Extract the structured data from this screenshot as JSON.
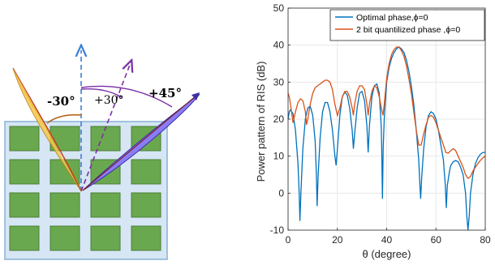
{
  "diagram": {
    "labels": {
      "neg30": "-30°",
      "pos30": "+30°",
      "pos45": "+45°"
    },
    "colors": {
      "panel": "#d6e6f5",
      "panel_border": "#8ab0d4",
      "element": "#6aa84f",
      "element_border": "#4b7e35",
      "beam_yellow": "#f9c74f",
      "beam_yellow_edge": "#b8860b",
      "beam_blue": "#8b7cf6",
      "beam_blue_edge": "#3b2fa8",
      "arrow_normal": "#3d7fd6",
      "arrow_purple": "#7a2fa8",
      "arc_brown": "#b5651d"
    }
  },
  "chart_data": {
    "type": "line",
    "title": "",
    "xlabel": "θ (degree)",
    "ylabel": "Power pattern of RIS (dB)",
    "xlim": [
      0,
      80
    ],
    "ylim": [
      -10,
      50
    ],
    "xticks": [
      0,
      20,
      40,
      60,
      80
    ],
    "yticks": [
      -10,
      0,
      10,
      20,
      30,
      40,
      50
    ],
    "grid": true,
    "legend_position": "top-right",
    "series": [
      {
        "name": "Optimal phase,ϕ=0",
        "color": "#0072bd",
        "points": [
          [
            0,
            20
          ],
          [
            0.5,
            22
          ],
          [
            1,
            22.5
          ],
          [
            2,
            21.5
          ],
          [
            3,
            17
          ],
          [
            4,
            8
          ],
          [
            4.5,
            0
          ],
          [
            4.8,
            -7.5
          ],
          [
            5.2,
            0
          ],
          [
            6,
            12
          ],
          [
            7,
            20
          ],
          [
            8,
            23
          ],
          [
            9,
            23.5
          ],
          [
            10,
            21
          ],
          [
            11,
            14
          ],
          [
            11.5,
            5
          ],
          [
            11.8,
            -3.5
          ],
          [
            12.2,
            5
          ],
          [
            13,
            15
          ],
          [
            14,
            22
          ],
          [
            15,
            24.5
          ],
          [
            16,
            24.5
          ],
          [
            17,
            22
          ],
          [
            18,
            17
          ],
          [
            19,
            10
          ],
          [
            19.5,
            7.5
          ],
          [
            20,
            12
          ],
          [
            21,
            21
          ],
          [
            22,
            26
          ],
          [
            23,
            27.3
          ],
          [
            24,
            26.5
          ],
          [
            25,
            23
          ],
          [
            26,
            17
          ],
          [
            26.5,
            12
          ],
          [
            27,
            16
          ],
          [
            28,
            23
          ],
          [
            29,
            27
          ],
          [
            30,
            27.5
          ],
          [
            31,
            25
          ],
          [
            32,
            18
          ],
          [
            32.5,
            11
          ],
          [
            33,
            18
          ],
          [
            34,
            26
          ],
          [
            35,
            29
          ],
          [
            36,
            29.5
          ],
          [
            37,
            27
          ],
          [
            37.8,
            18
          ],
          [
            38,
            12
          ],
          [
            38.3,
            -1.5
          ],
          [
            38.6,
            12
          ],
          [
            39,
            20
          ],
          [
            40,
            30
          ],
          [
            41,
            34
          ],
          [
            42,
            36.5
          ],
          [
            43,
            38
          ],
          [
            44,
            39
          ],
          [
            45,
            39.5
          ],
          [
            46,
            39
          ],
          [
            47,
            38
          ],
          [
            48,
            36
          ],
          [
            49,
            33
          ],
          [
            50,
            29
          ],
          [
            51,
            24
          ],
          [
            52,
            17
          ],
          [
            53,
            9
          ],
          [
            53.5,
            2
          ],
          [
            53.8,
            -1.5
          ],
          [
            54.2,
            4
          ],
          [
            55,
            12
          ],
          [
            56,
            18
          ],
          [
            57,
            21
          ],
          [
            58,
            22
          ],
          [
            59,
            21.5
          ],
          [
            60,
            20
          ],
          [
            61,
            17
          ],
          [
            62,
            13
          ],
          [
            63,
            9
          ],
          [
            63.8,
            2
          ],
          [
            64.2,
            -4
          ],
          [
            64.6,
            2
          ],
          [
            65.5,
            6
          ],
          [
            66,
            7.5
          ],
          [
            67,
            8.5
          ],
          [
            68,
            8.8
          ],
          [
            69,
            8.5
          ],
          [
            70,
            7
          ],
          [
            71,
            5
          ],
          [
            72,
            0
          ],
          [
            72.5,
            -6
          ],
          [
            73,
            -10
          ],
          [
            73.5,
            -6
          ],
          [
            74,
            0
          ],
          [
            75,
            5
          ],
          [
            76,
            8
          ],
          [
            77,
            9.5
          ],
          [
            78,
            10.5
          ],
          [
            79,
            11
          ],
          [
            80,
            11
          ]
        ]
      },
      {
        "name": "2 bit quantilized phase ,ϕ=0",
        "color": "#d95319",
        "points": [
          [
            0,
            27
          ],
          [
            0.5,
            26
          ],
          [
            1,
            24
          ],
          [
            2,
            19
          ],
          [
            3,
            22
          ],
          [
            4,
            24.5
          ],
          [
            5,
            25.5
          ],
          [
            6,
            25
          ],
          [
            7,
            22
          ],
          [
            7.5,
            18.5
          ],
          [
            8,
            20
          ],
          [
            9,
            24
          ],
          [
            10,
            27
          ],
          [
            11,
            28.5
          ],
          [
            12,
            29
          ],
          [
            13,
            29.5
          ],
          [
            14,
            30
          ],
          [
            15,
            30.5
          ],
          [
            16,
            30.5
          ],
          [
            17,
            30
          ],
          [
            18,
            28
          ],
          [
            19,
            24
          ],
          [
            20,
            21
          ],
          [
            21,
            23
          ],
          [
            22,
            26
          ],
          [
            23,
            27.5
          ],
          [
            24,
            27.5
          ],
          [
            25,
            26
          ],
          [
            26,
            23
          ],
          [
            26.5,
            21
          ],
          [
            27,
            24
          ],
          [
            28,
            27.5
          ],
          [
            29,
            29
          ],
          [
            30,
            29
          ],
          [
            31,
            28
          ],
          [
            32,
            24
          ],
          [
            32.5,
            21
          ],
          [
            33,
            24
          ],
          [
            34,
            27.5
          ],
          [
            35,
            29
          ],
          [
            36,
            28.5
          ],
          [
            37,
            26
          ],
          [
            38,
            22.5
          ],
          [
            38.5,
            21
          ],
          [
            39,
            24
          ],
          [
            40,
            31
          ],
          [
            41,
            35
          ],
          [
            42,
            37.5
          ],
          [
            43,
            38.8
          ],
          [
            44,
            39.5
          ],
          [
            45,
            39.5
          ],
          [
            46,
            38.5
          ],
          [
            47,
            37
          ],
          [
            48,
            34.5
          ],
          [
            49,
            31
          ],
          [
            50,
            27
          ],
          [
            51,
            22
          ],
          [
            52,
            17
          ],
          [
            53,
            13
          ],
          [
            54,
            13
          ],
          [
            55,
            16
          ],
          [
            56,
            18.5
          ],
          [
            57,
            20.5
          ],
          [
            58,
            21
          ],
          [
            59,
            20.5
          ],
          [
            60,
            19
          ],
          [
            61,
            17
          ],
          [
            62,
            15
          ],
          [
            63,
            13
          ],
          [
            64,
            11
          ],
          [
            65,
            10.8
          ],
          [
            66,
            11.5
          ],
          [
            67,
            12
          ],
          [
            68,
            11.5
          ],
          [
            69,
            10
          ],
          [
            70,
            8.5
          ],
          [
            71,
            7
          ],
          [
            72,
            5
          ],
          [
            73,
            4
          ],
          [
            74,
            4.5
          ],
          [
            75,
            6
          ],
          [
            76,
            7
          ],
          [
            77,
            8
          ],
          [
            78,
            8.8
          ],
          [
            79,
            9.5
          ],
          [
            80,
            10
          ]
        ]
      }
    ]
  }
}
